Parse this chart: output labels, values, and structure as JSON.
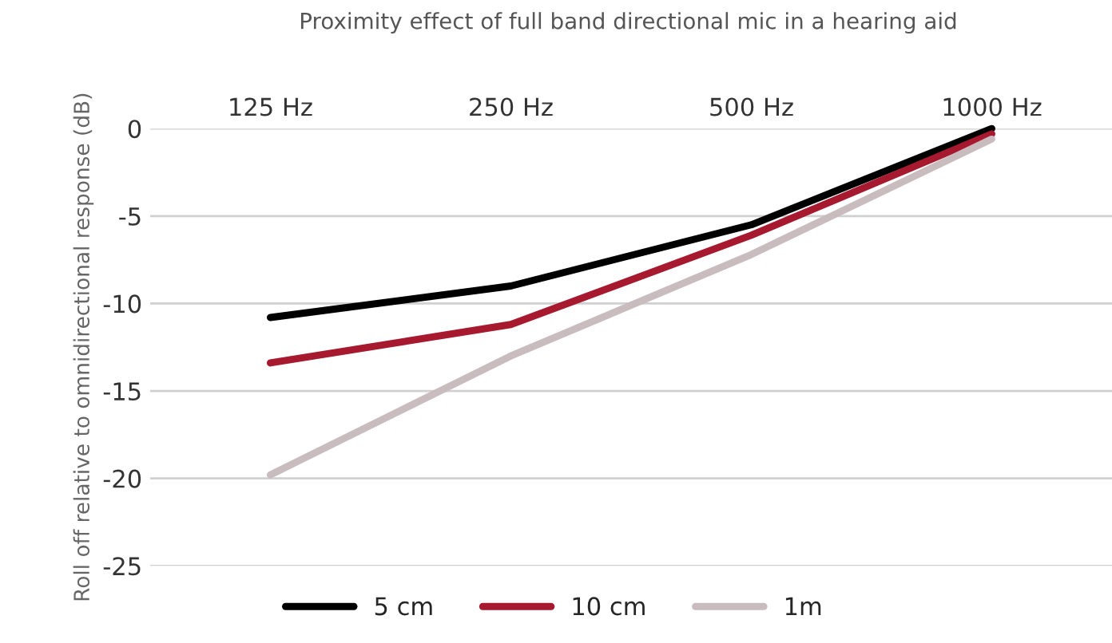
{
  "chart_data": {
    "type": "line",
    "title": "Proximity effect of full band directional mic in a hearing aid",
    "ylabel": "Roll off relative to omnidirectional response (dB)",
    "categories": [
      "125 Hz",
      "250 Hz",
      "500 Hz",
      "1000 Hz"
    ],
    "series": [
      {
        "name": "5 cm",
        "color": "#000000",
        "values": [
          -10.8,
          -9,
          -5.5,
          0
        ]
      },
      {
        "name": "10 cm",
        "color": "#a6192e",
        "values": [
          -13.4,
          -11.2,
          -6.1,
          -0.3
        ]
      },
      {
        "name": "1m",
        "color": "#c9bcbf",
        "values": [
          -19.8,
          -13,
          -7.2,
          -0.6
        ]
      }
    ],
    "ylim": [
      -25,
      0
    ],
    "yticks": [
      -25,
      -20,
      -15,
      -10,
      -5,
      0
    ],
    "grid": "y",
    "legend": "bottom",
    "marker": "none",
    "line_style": "solid"
  }
}
